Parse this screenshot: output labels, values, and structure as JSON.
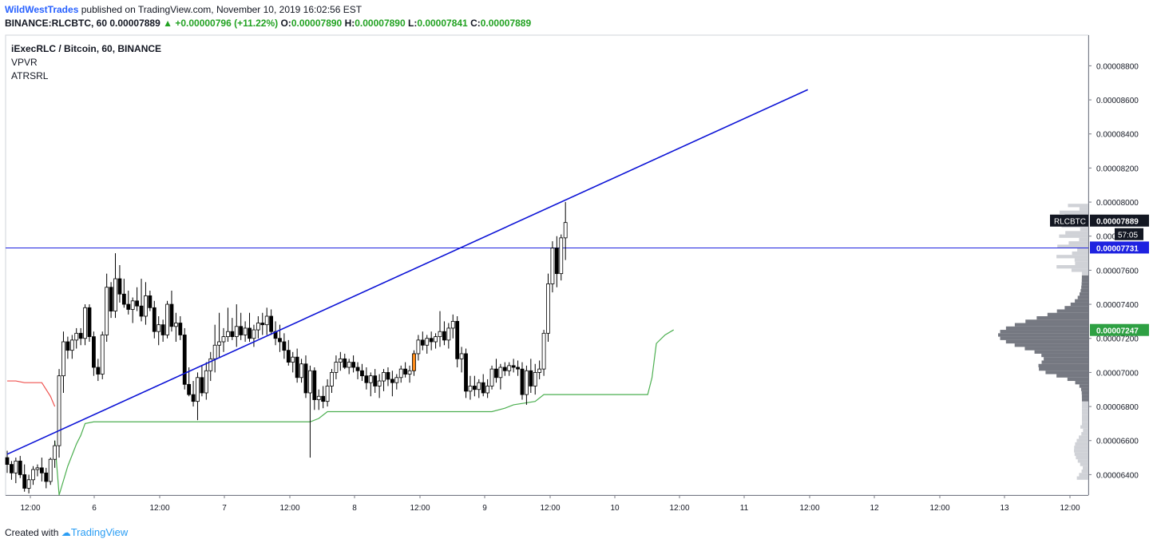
{
  "header": {
    "author": "WildWestTrades",
    "published": "published on TradingView.com, November 10, 2019 16:02:56 EST",
    "symbol_line_prefix": "BINANCE:RLCBTC, 60",
    "last": "0.00007889",
    "change": "+0.00000796 (+11.22%)",
    "o_label": "O:",
    "o": "0.00007890",
    "h_label": "H:",
    "h": "0.00007890",
    "l_label": "L:",
    "l": "0.00007841",
    "c_label": "C:",
    "c": "0.00007889"
  },
  "legend": {
    "title": "iExecRLC / Bitcoin, 60, BINANCE",
    "ind1": "VPVR",
    "ind2": "ATRSRL"
  },
  "footer": {
    "created_with": "Created with",
    "brand": "TradingView"
  },
  "chart_data": {
    "type": "candlestick",
    "symbol": "RLCBTC",
    "y_ticks": [
      "0.00008800",
      "0.00008600",
      "0.00008400",
      "0.00008200",
      "0.00008000",
      "0.00007800",
      "0.00007600",
      "0.00007400",
      "0.00007200",
      "0.00007000",
      "0.00006800",
      "0.00006600",
      "0.00006400"
    ],
    "ylim": [
      6.28e-05,
      8.98e-05
    ],
    "x_ticks": [
      "12:00",
      "6",
      "12:00",
      "7",
      "12:00",
      "8",
      "12:00",
      "9",
      "12:00",
      "10",
      "12:00",
      "11",
      "12:00",
      "12",
      "12:00",
      "13",
      "12:00"
    ],
    "price_labels": {
      "last": {
        "name": "RLCBTC",
        "value": "0.00007889",
        "countdown": "57:05"
      },
      "hline": "0.00007731",
      "atr": "0.00007247"
    },
    "horizontal_line": 7.731e-05,
    "trendline": {
      "p1": [
        0,
        6.52e-05
      ],
      "p2": [
        185,
        8.66e-05
      ]
    },
    "candles": [
      [
        6.5e-05,
        6.54e-05,
        6.41e-05,
        6.46e-05
      ],
      [
        6.46e-05,
        6.48e-05,
        6.37e-05,
        6.41e-05
      ],
      [
        6.41e-05,
        6.5e-05,
        6.35e-05,
        6.48e-05
      ],
      [
        6.48e-05,
        6.51e-05,
        6.38e-05,
        6.4e-05
      ],
      [
        6.4e-05,
        6.46e-05,
        6.3e-05,
        6.32e-05
      ],
      [
        6.32e-05,
        6.4e-05,
        6.29e-05,
        6.37e-05
      ],
      [
        6.37e-05,
        6.45e-05,
        6.34e-05,
        6.43e-05
      ],
      [
        6.43e-05,
        6.46e-05,
        6.39e-05,
        6.44e-05
      ],
      [
        6.44e-05,
        6.5e-05,
        6.36e-05,
        6.41e-05
      ],
      [
        6.41e-05,
        6.44e-05,
        6.32e-05,
        6.36e-05
      ],
      [
        6.36e-05,
        6.5e-05,
        6.34e-05,
        6.49e-05
      ],
      [
        6.49e-05,
        6.6e-05,
        6.44e-05,
        6.57e-05
      ],
      [
        6.57e-05,
        7.02e-05,
        6.5e-05,
        6.98e-05
      ],
      [
        6.98e-05,
        7.24e-05,
        6.88e-05,
        7.18e-05
      ],
      [
        7.18e-05,
        7.21e-05,
        7.08e-05,
        7.13e-05
      ],
      [
        7.13e-05,
        7.22e-05,
        7.08e-05,
        7.19e-05
      ],
      [
        7.19e-05,
        7.26e-05,
        7.14e-05,
        7.23e-05
      ],
      [
        7.23e-05,
        7.26e-05,
        7.16e-05,
        7.2e-05
      ],
      [
        7.2e-05,
        7.4e-05,
        7.16e-05,
        7.38e-05
      ],
      [
        7.38e-05,
        7.4e-05,
        7.18e-05,
        7.21e-05
      ],
      [
        7.21e-05,
        7.24e-05,
        6.98e-05,
        7.03e-05
      ],
      [
        7.03e-05,
        7.08e-05,
        6.95e-05,
        6.99e-05
      ],
      [
        6.99e-05,
        7.24e-05,
        6.96e-05,
        7.22e-05
      ],
      [
        7.22e-05,
        7.58e-05,
        7.18e-05,
        7.5e-05
      ],
      [
        7.5e-05,
        7.53e-05,
        7.32e-05,
        7.36e-05
      ],
      [
        7.36e-05,
        7.7e-05,
        7.32e-05,
        7.55e-05
      ],
      [
        7.55e-05,
        7.63e-05,
        7.41e-05,
        7.46e-05
      ],
      [
        7.46e-05,
        7.55e-05,
        7.38e-05,
        7.4e-05
      ],
      [
        7.4e-05,
        7.48e-05,
        7.34e-05,
        7.37e-05
      ],
      [
        7.37e-05,
        7.44e-05,
        7.29e-05,
        7.42e-05
      ],
      [
        7.42e-05,
        7.5e-05,
        7.36e-05,
        7.39e-05
      ],
      [
        7.39e-05,
        7.55e-05,
        7.3e-05,
        7.33e-05
      ],
      [
        7.33e-05,
        7.53e-05,
        7.28e-05,
        7.45e-05
      ],
      [
        7.45e-05,
        7.48e-05,
        7.36e-05,
        7.38e-05
      ],
      [
        7.38e-05,
        7.42e-05,
        7.2e-05,
        7.24e-05
      ],
      [
        7.24e-05,
        7.33e-05,
        7.16e-05,
        7.28e-05
      ],
      [
        7.28e-05,
        7.31e-05,
        7.18e-05,
        7.22e-05
      ],
      [
        7.22e-05,
        7.42e-05,
        7.2e-05,
        7.4e-05
      ],
      [
        7.4e-05,
        7.48e-05,
        7.24e-05,
        7.27e-05
      ],
      [
        7.27e-05,
        7.35e-05,
        7.18e-05,
        7.29e-05
      ],
      [
        7.29e-05,
        7.33e-05,
        7.19e-05,
        7.22e-05
      ],
      [
        7.22e-05,
        7.26e-05,
        6.9e-05,
        6.93e-05
      ],
      [
        6.93e-05,
        7.03e-05,
        6.86e-05,
        6.87e-05
      ],
      [
        6.87e-05,
        6.95e-05,
        6.8e-05,
        6.83e-05
      ],
      [
        6.83e-05,
        7e-05,
        6.72e-05,
        6.97e-05
      ],
      [
        6.97e-05,
        7.04e-05,
        6.86e-05,
        6.88e-05
      ],
      [
        6.88e-05,
        7.06e-05,
        6.84e-05,
        7.01e-05
      ],
      [
        7.01e-05,
        7.12e-05,
        6.95e-05,
        7.08e-05
      ],
      [
        7.08e-05,
        7.28e-05,
        7e-05,
        7.16e-05
      ],
      [
        7.16e-05,
        7.35e-05,
        7.09e-05,
        7.18e-05
      ],
      [
        7.18e-05,
        7.26e-05,
        7.12e-05,
        7.21e-05
      ],
      [
        7.21e-05,
        7.38e-05,
        7.18e-05,
        7.24e-05
      ],
      [
        7.24e-05,
        7.32e-05,
        7.19e-05,
        7.21e-05
      ],
      [
        7.21e-05,
        7.4e-05,
        7.15e-05,
        7.27e-05
      ],
      [
        7.27e-05,
        7.35e-05,
        7.19e-05,
        7.22e-05
      ],
      [
        7.22e-05,
        7.3e-05,
        7.18e-05,
        7.26e-05
      ],
      [
        7.26e-05,
        7.35e-05,
        7.18e-05,
        7.2e-05
      ],
      [
        7.2e-05,
        7.28e-05,
        7.15e-05,
        7.25e-05
      ],
      [
        7.25e-05,
        7.33e-05,
        7.2e-05,
        7.29e-05
      ],
      [
        7.29e-05,
        7.35e-05,
        7.22e-05,
        7.28e-05
      ],
      [
        7.28e-05,
        7.38e-05,
        7.22e-05,
        7.33e-05
      ],
      [
        7.33e-05,
        7.37e-05,
        7.22e-05,
        7.24e-05
      ],
      [
        7.24e-05,
        7.3e-05,
        7.16e-05,
        7.2e-05
      ],
      [
        7.2e-05,
        7.28e-05,
        7.12e-05,
        7.18e-05
      ],
      [
        7.18e-05,
        7.23e-05,
        7.08e-05,
        7.13e-05
      ],
      [
        7.13e-05,
        7.19e-05,
        7.04e-05,
        7.06e-05
      ],
      [
        7.06e-05,
        7.12e-05,
        7e-05,
        7.09e-05
      ],
      [
        7.09e-05,
        7.14e-05,
        6.94e-05,
        6.97e-05
      ],
      [
        6.97e-05,
        7.08e-05,
        6.94e-05,
        7.05e-05
      ],
      [
        7.05e-05,
        7.1e-05,
        6.85e-05,
        6.88e-05
      ],
      [
        6.88e-05,
        7.04e-05,
        6.5e-05,
        7.01e-05
      ],
      [
        7.01e-05,
        7.03e-05,
        6.78e-05,
        6.84e-05
      ],
      [
        6.84e-05,
        6.9e-05,
        6.78e-05,
        6.86e-05
      ],
      [
        6.86e-05,
        6.92e-05,
        6.79e-05,
        6.83e-05
      ],
      [
        6.83e-05,
        6.96e-05,
        6.8e-05,
        6.92e-05
      ],
      [
        6.92e-05,
        7.02e-05,
        6.88e-05,
        7e-05
      ],
      [
        7e-05,
        7.1e-05,
        6.96e-05,
        7.06e-05
      ],
      [
        7.06e-05,
        7.12e-05,
        7.01e-05,
        7.08e-05
      ],
      [
        7.08e-05,
        7.11e-05,
        7.02e-05,
        7.03e-05
      ],
      [
        7.03e-05,
        7.08e-05,
        6.99e-05,
        7.06e-05
      ],
      [
        7.06e-05,
        7.1e-05,
        7e-05,
        7.03e-05
      ],
      [
        7.03e-05,
        7.06e-05,
        6.96e-05,
        7.01e-05
      ],
      [
        7.01e-05,
        7.05e-05,
        6.95e-05,
        6.98e-05
      ],
      [
        6.98e-05,
        7.03e-05,
        6.9e-05,
        6.94e-05
      ],
      [
        6.94e-05,
        7e-05,
        6.86e-05,
        6.98e-05
      ],
      [
        6.98e-05,
        7.02e-05,
        6.88e-05,
        6.92e-05
      ],
      [
        6.92e-05,
        6.99e-05,
        6.85e-05,
        6.95e-05
      ],
      [
        6.95e-05,
        7.02e-05,
        6.89e-05,
        7e-05
      ],
      [
        7e-05,
        7.03e-05,
        6.92e-05,
        6.96e-05
      ],
      [
        6.96e-05,
        7.01e-05,
        6.86e-05,
        6.94e-05
      ],
      [
        6.94e-05,
        6.99e-05,
        6.9e-05,
        6.97e-05
      ],
      [
        6.97e-05,
        7.04e-05,
        6.94e-05,
        7.02e-05
      ],
      [
        7.02e-05,
        7.06e-05,
        6.97e-05,
        6.99e-05
      ],
      [
        6.99e-05,
        7.04e-05,
        6.94e-05,
        7.01e-05
      ],
      [
        7.01e-05,
        7.13e-05,
        6.98e-05,
        7.11e-05
      ],
      [
        7.11e-05,
        7.22e-05,
        7.07e-05,
        7.19e-05
      ],
      [
        7.19e-05,
        7.24e-05,
        7.13e-05,
        7.16e-05
      ],
      [
        7.16e-05,
        7.22e-05,
        7.11e-05,
        7.2e-05
      ],
      [
        7.2e-05,
        7.24e-05,
        7.13e-05,
        7.18e-05
      ],
      [
        7.18e-05,
        7.23e-05,
        7.14e-05,
        7.21e-05
      ],
      [
        7.21e-05,
        7.36e-05,
        7.15e-05,
        7.24e-05
      ],
      [
        7.24e-05,
        7.3e-05,
        7.16e-05,
        7.19e-05
      ],
      [
        7.19e-05,
        7.29e-05,
        7.14e-05,
        7.26e-05
      ],
      [
        7.26e-05,
        7.34e-05,
        7.2e-05,
        7.3e-05
      ],
      [
        7.3e-05,
        7.33e-05,
        7.03e-05,
        7.08e-05
      ],
      [
        7.08e-05,
        7.15e-05,
        7e-05,
        7.11e-05
      ],
      [
        7.11e-05,
        7.14e-05,
        6.85e-05,
        6.89e-05
      ],
      [
        6.89e-05,
        6.98e-05,
        6.84e-05,
        6.92e-05
      ],
      [
        6.92e-05,
        6.98e-05,
        6.86e-05,
        6.9e-05
      ],
      [
        6.9e-05,
        6.96e-05,
        6.85e-05,
        6.94e-05
      ],
      [
        6.94e-05,
        6.99e-05,
        6.86e-05,
        6.88e-05
      ],
      [
        6.88e-05,
        6.96e-05,
        6.85e-05,
        6.92e-05
      ],
      [
        6.92e-05,
        7.04e-05,
        6.9e-05,
        7.02e-05
      ],
      [
        7.02e-05,
        7.08e-05,
        6.94e-05,
        6.97e-05
      ],
      [
        6.97e-05,
        7.05e-05,
        6.9e-05,
        7.03e-05
      ],
      [
        7.03e-05,
        7.06e-05,
        6.98e-05,
        7.01e-05
      ],
      [
        7.01e-05,
        7.06e-05,
        6.98e-05,
        7.04e-05
      ],
      [
        7.04e-05,
        7.08e-05,
        7e-05,
        7.03e-05
      ],
      [
        7.03e-05,
        7.07e-05,
        6.98e-05,
        7.02e-05
      ],
      [
        7.02e-05,
        7.06e-05,
        6.84e-05,
        6.87e-05
      ],
      [
        6.87e-05,
        7.04e-05,
        6.81e-05,
        7.01e-05
      ],
      [
        7.01e-05,
        7.08e-05,
        6.88e-05,
        6.92e-05
      ],
      [
        6.92e-05,
        7.05e-05,
        6.87e-05,
        7e-05
      ],
      [
        7e-05,
        7.07e-05,
        6.96e-05,
        7.02e-05
      ],
      [
        7.02e-05,
        7.25e-05,
        6.98e-05,
        7.23e-05
      ],
      [
        7.23e-05,
        7.58e-05,
        7.18e-05,
        7.52e-05
      ],
      [
        7.52e-05,
        7.77e-05,
        7.47e-05,
        7.73e-05
      ],
      [
        7.73e-05,
        7.8e-05,
        7.5e-05,
        7.58e-05
      ],
      [
        7.58e-05,
        7.81e-05,
        7.54e-05,
        7.79e-05
      ],
      [
        7.79e-05,
        8e-05,
        7.66e-05,
        7.88e-05
      ]
    ],
    "atr_segments": [
      {
        "color": "#ef5350",
        "points": [
          [
            0,
            6.95e-05
          ],
          [
            2,
            6.95e-05
          ],
          [
            4,
            6.94e-05
          ],
          [
            8,
            6.94e-05
          ],
          [
            10,
            6.86e-05
          ],
          [
            11,
            6.8e-05
          ]
        ]
      },
      {
        "color": "#4caf50",
        "points": [
          [
            11,
            6.6e-05
          ],
          [
            12,
            6.28e-05
          ],
          [
            14,
            6.45e-05
          ],
          [
            16,
            6.58e-05
          ],
          [
            17,
            6.63e-05
          ],
          [
            18,
            6.7e-05
          ],
          [
            20,
            6.71e-05
          ],
          [
            70,
            6.71e-05
          ],
          [
            72,
            6.73e-05
          ],
          [
            74,
            6.77e-05
          ],
          [
            112,
            6.77e-05
          ],
          [
            115,
            6.79e-05
          ],
          [
            117,
            6.81e-05
          ],
          [
            122,
            6.83e-05
          ],
          [
            124,
            6.87e-05
          ],
          [
            148,
            6.87e-05
          ],
          [
            149,
            6.97e-05
          ],
          [
            150,
            7.17e-05
          ],
          [
            152,
            7.22e-05
          ],
          [
            154,
            7.25e-05
          ]
        ]
      }
    ]
  }
}
